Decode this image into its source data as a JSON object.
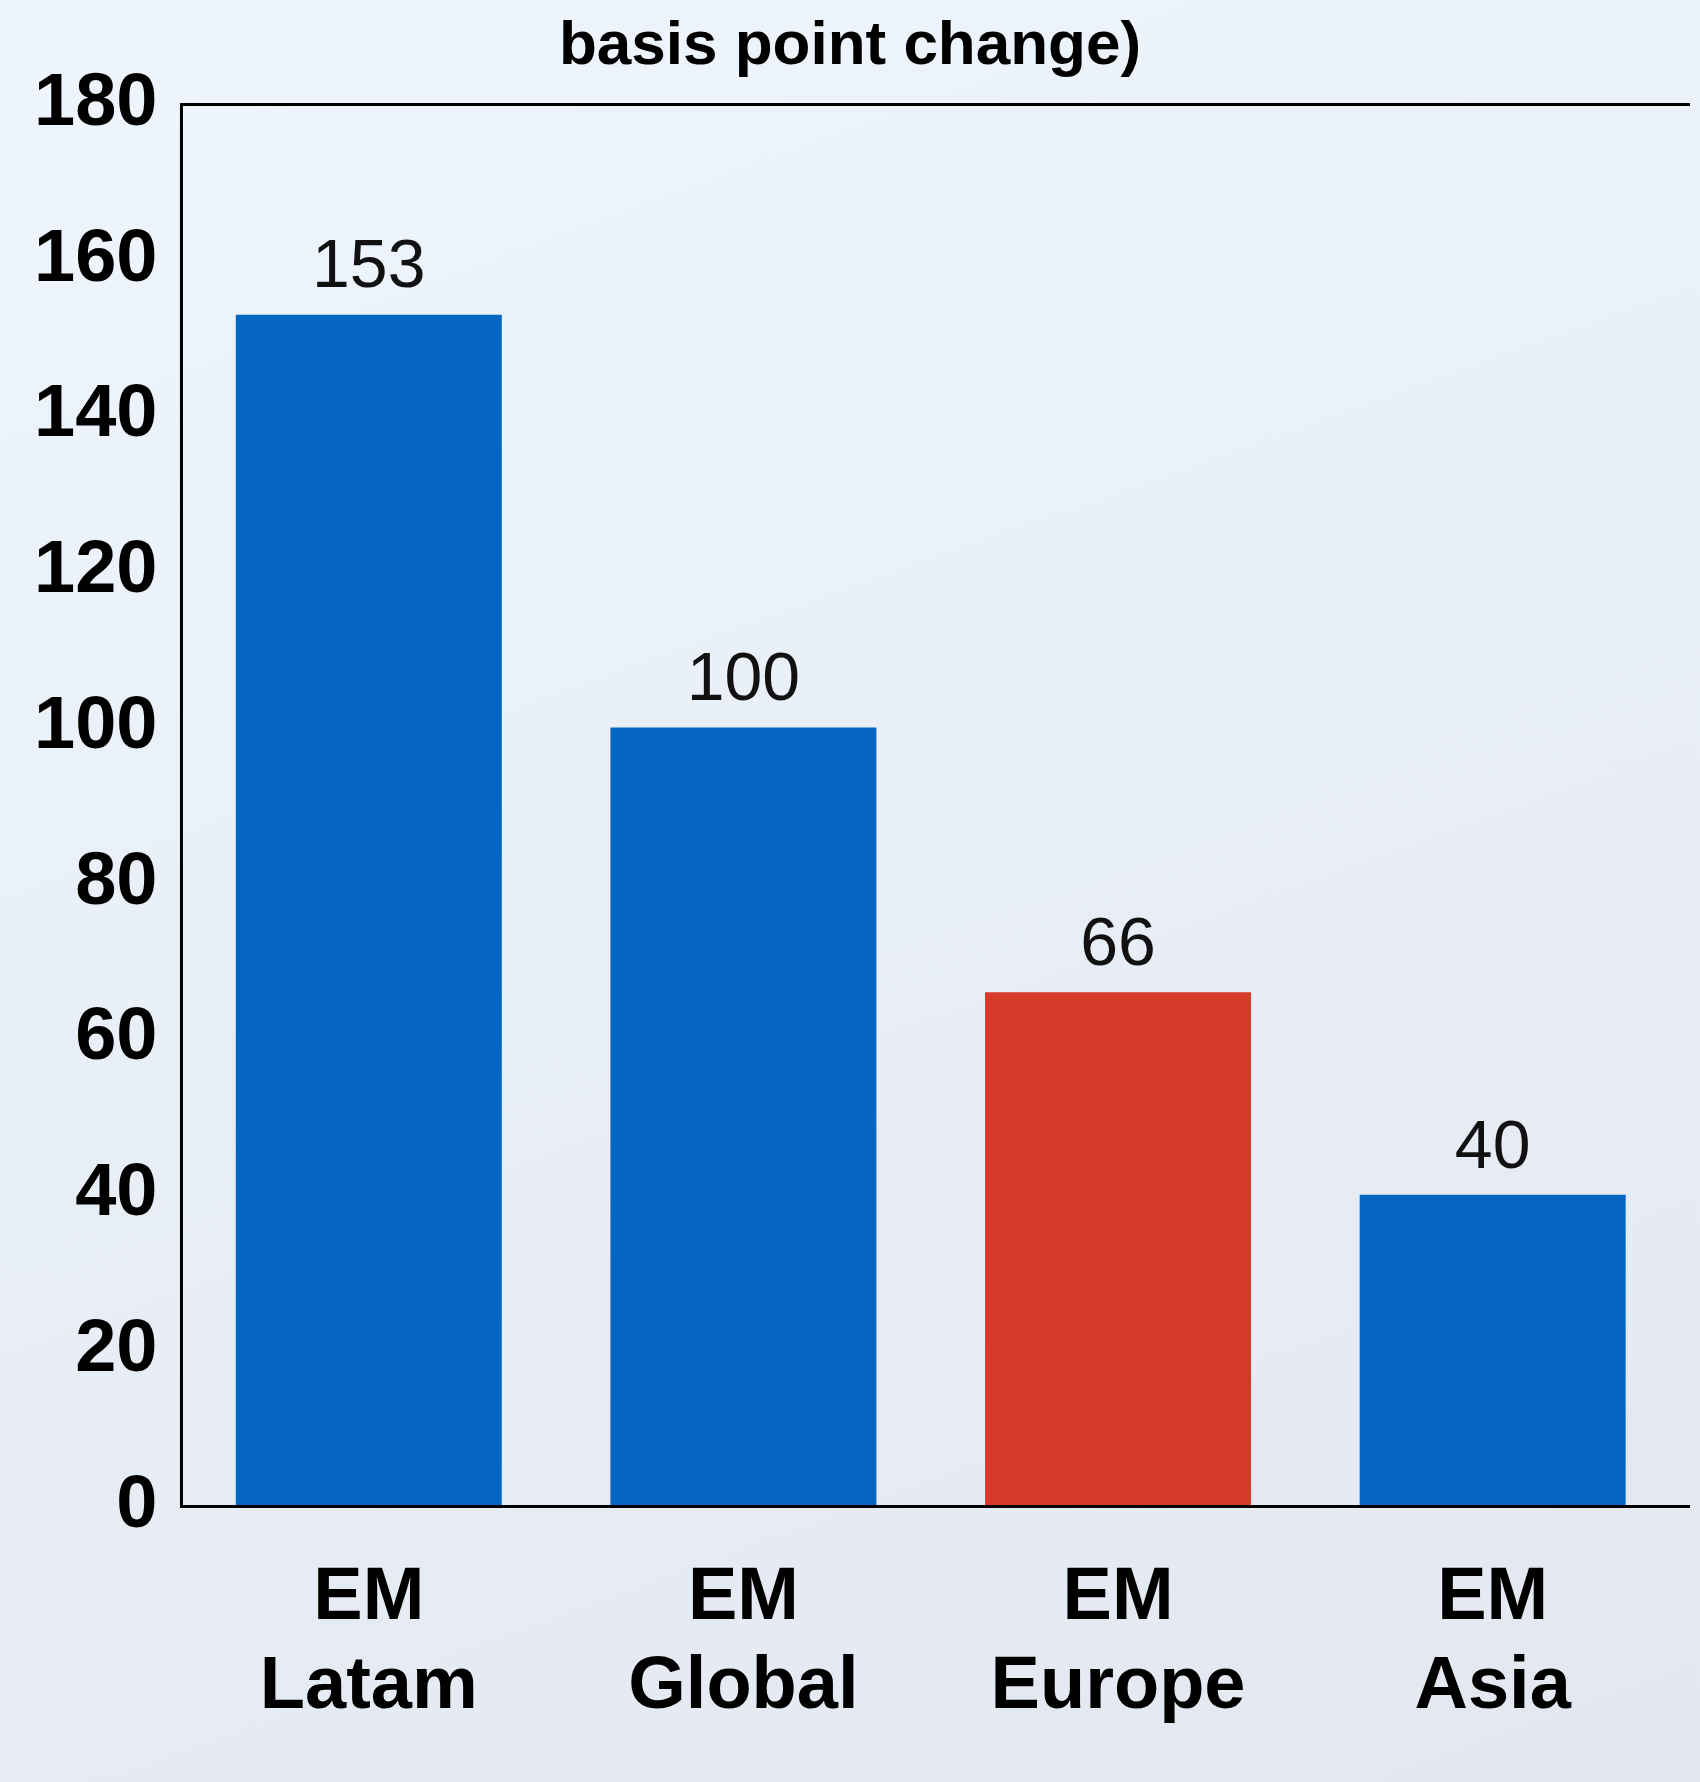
{
  "chart_data": {
    "type": "bar",
    "title": "basis point change)",
    "categories": [
      "EM Latam",
      "EM Global",
      "EM Europe",
      "EM Asia"
    ],
    "values": [
      153,
      100,
      66,
      40
    ],
    "colors": [
      "#0466c0",
      "#0466c0",
      "#d63a28",
      "#0466c0"
    ],
    "ylim": [
      0,
      180
    ],
    "yticks": [
      0,
      20,
      40,
      60,
      80,
      100,
      120,
      140,
      160,
      180
    ],
    "data_labels": true,
    "grid": false,
    "legend": false
  }
}
